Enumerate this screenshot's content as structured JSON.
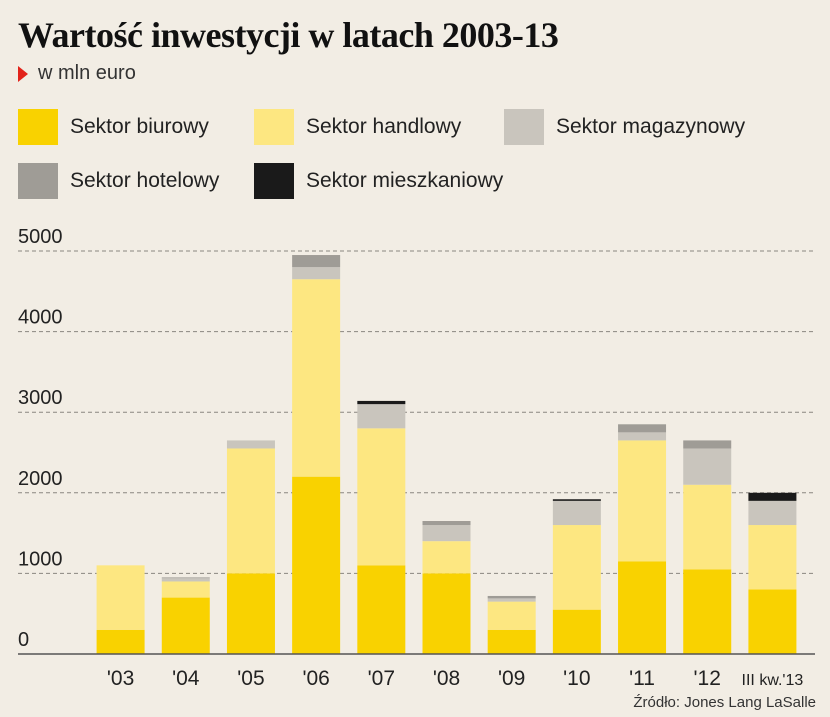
{
  "title": "Wartość inwestycji w latach 2003-13",
  "subtitle": "w mln euro",
  "source": "Źródło: Jones Lang LaSalle",
  "legend": [
    {
      "label": "Sektor biurowy",
      "color": "#f9d200"
    },
    {
      "label": "Sektor handlowy",
      "color": "#fde781"
    },
    {
      "label": "Sektor magazynowy",
      "color": "#c9c5bd"
    },
    {
      "label": "Sektor hotelowy",
      "color": "#9f9c96"
    },
    {
      "label": "Sektor mieszkaniowy",
      "color": "#1a1a1a"
    }
  ],
  "chart_data": {
    "type": "bar",
    "stacked": true,
    "categories": [
      "'03",
      "'04",
      "'05",
      "'06",
      "'07",
      "'08",
      "'09",
      "'10",
      "'11",
      "'12",
      "III kw.'13"
    ],
    "ylim": [
      0,
      5000
    ],
    "yticks": [
      0,
      1000,
      2000,
      3000,
      4000,
      5000
    ],
    "grid": "dashed",
    "series": [
      {
        "name": "Sektor biurowy",
        "color": "#f9d200",
        "values": [
          300,
          700,
          1000,
          2200,
          1100,
          1000,
          300,
          550,
          1150,
          1050,
          800
        ]
      },
      {
        "name": "Sektor handlowy",
        "color": "#fde781",
        "values": [
          800,
          200,
          1550,
          2450,
          1700,
          400,
          350,
          1050,
          1500,
          1050,
          800
        ]
      },
      {
        "name": "Sektor magazynowy",
        "color": "#c9c5bd",
        "values": [
          0,
          40,
          100,
          150,
          300,
          200,
          40,
          300,
          100,
          450,
          300
        ]
      },
      {
        "name": "Sektor hotelowy",
        "color": "#9f9c96",
        "values": [
          0,
          10,
          0,
          150,
          0,
          50,
          30,
          0,
          100,
          100,
          0
        ]
      },
      {
        "name": "Sektor mieszkaniowy",
        "color": "#1a1a1a",
        "values": [
          0,
          0,
          0,
          0,
          40,
          0,
          0,
          20,
          0,
          0,
          100
        ]
      }
    ]
  }
}
